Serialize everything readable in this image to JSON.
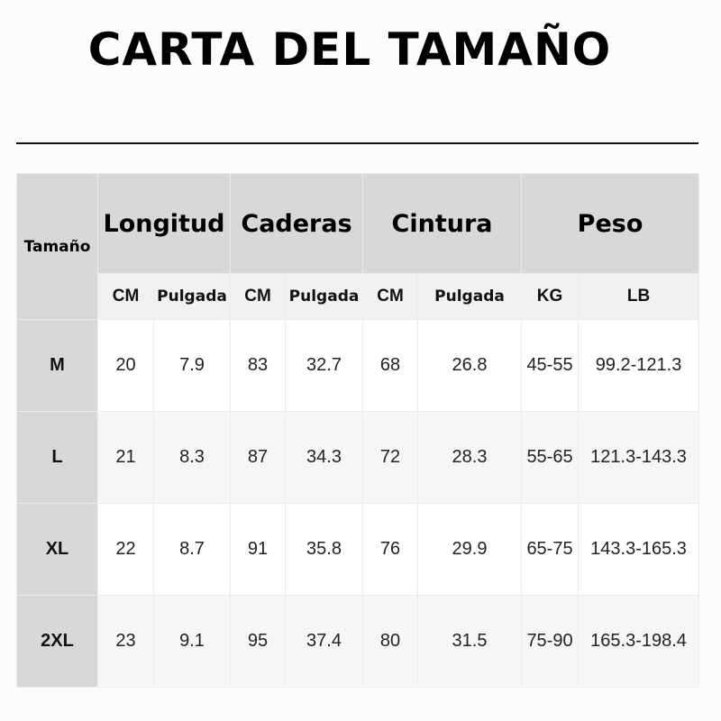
{
  "title": "CARTA DEL TAMAÑO",
  "colors": {
    "header_bg": "#d9d8d8",
    "subheader_bg": "#f2f1f0",
    "body_bg": "#ffffff"
  },
  "table": {
    "size_header": "Tamaño",
    "groups": [
      {
        "label": "Longitud",
        "units": [
          "CM",
          "Pulgada"
        ]
      },
      {
        "label": "Caderas",
        "units": [
          "CM",
          "Pulgada"
        ]
      },
      {
        "label": "Cintura",
        "units": [
          "CM",
          "Pulgada"
        ]
      },
      {
        "label": "Peso",
        "units": [
          "KG",
          "LB"
        ]
      }
    ],
    "rows": [
      {
        "size": "M",
        "values": [
          "20",
          "7.9",
          "83",
          "32.7",
          "68",
          "26.8",
          "45-55",
          "99.2-121.3"
        ]
      },
      {
        "size": "L",
        "values": [
          "21",
          "8.3",
          "87",
          "34.3",
          "72",
          "28.3",
          "55-65",
          "121.3-143.3"
        ]
      },
      {
        "size": "XL",
        "values": [
          "22",
          "8.7",
          "91",
          "35.8",
          "76",
          "29.9",
          "65-75",
          "143.3-165.3"
        ]
      },
      {
        "size": "2XL",
        "values": [
          "23",
          "9.1",
          "95",
          "37.4",
          "80",
          "31.5",
          "75-90",
          "165.3-198.4"
        ]
      }
    ]
  }
}
